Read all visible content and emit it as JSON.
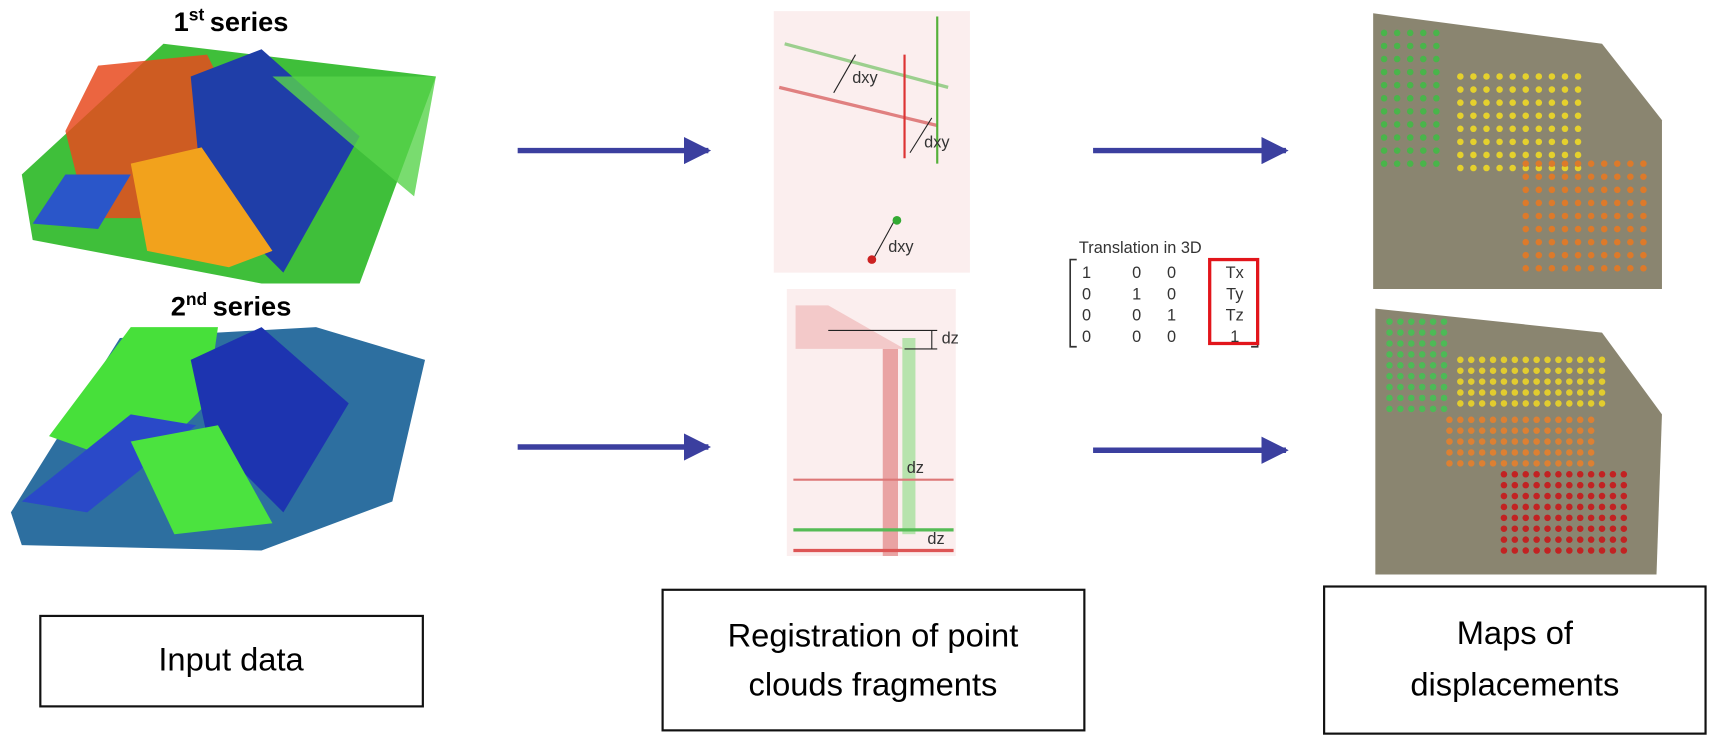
{
  "series_labels": [
    {
      "number": "1",
      "suffix": "st",
      "text": "series"
    },
    {
      "number": "2",
      "suffix": "nd",
      "text": "series"
    }
  ],
  "registration": {
    "dxy_labels": [
      "dxy",
      "dxy",
      "dxy"
    ],
    "dz_labels": [
      "dz",
      "dz",
      "dz"
    ]
  },
  "matrix": {
    "title": "Translation in 3D",
    "rows": [
      [
        "1",
        "0",
        "0",
        "Tx"
      ],
      [
        "0",
        "1",
        "0",
        "Ty"
      ],
      [
        "0",
        "0",
        "1",
        "Tz"
      ],
      [
        "0",
        "0",
        "0",
        "1"
      ]
    ]
  },
  "boxes": {
    "input": [
      "Input data"
    ],
    "registration": [
      "Registration of point",
      "clouds fragments"
    ],
    "maps": [
      "Maps of",
      "displacements"
    ]
  }
}
